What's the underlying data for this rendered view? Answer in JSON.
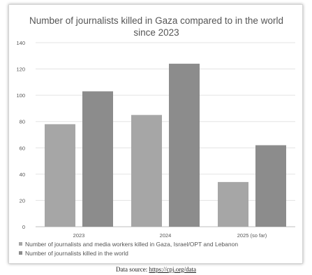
{
  "chart_data": {
    "type": "bar",
    "title_lines": [
      "Number of journalists killed in Gaza compared to in the world",
      "since 2023"
    ],
    "categories": [
      "2023",
      "2024",
      "2025 (so far)"
    ],
    "series": [
      {
        "name": "Number of journalists and media workers killed in Gaza, Israel/OPT and Lebanon",
        "values": [
          78,
          85,
          34
        ],
        "color": "#a6a6a6"
      },
      {
        "name": "Number of journalists killed in the world",
        "values": [
          103,
          124,
          62
        ],
        "color": "#8c8c8c"
      }
    ],
    "ylim": [
      0,
      140
    ],
    "yticks": [
      0,
      20,
      40,
      60,
      80,
      100,
      120,
      140
    ],
    "grid": true,
    "legend_position": "bottom-left"
  },
  "source": {
    "prefix": "Data source: ",
    "link_text": "https://cpj.org/data"
  }
}
